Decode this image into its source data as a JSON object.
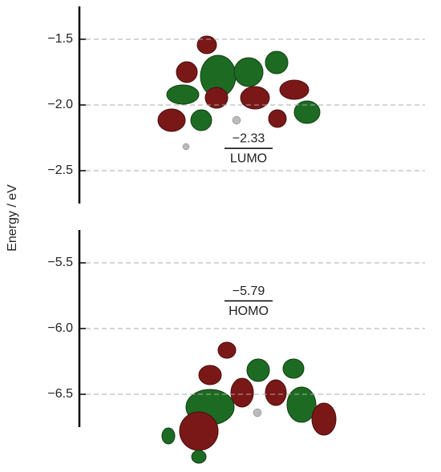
{
  "chart_data": [
    {
      "type": "level",
      "ylabel": "Energy / eV",
      "ylim": [
        -2.75,
        -1.25
      ],
      "yticks": [
        {
          "value": -1.5,
          "label": "−1.5"
        },
        {
          "value": -2.0,
          "label": "−2.0"
        },
        {
          "value": -2.5,
          "label": "−2.5"
        }
      ],
      "grid": true,
      "color": "#000000",
      "categories": [
        "LUMO"
      ],
      "values": [
        -2.33
      ],
      "value_labels": [
        "−2.33"
      ]
    },
    {
      "type": "level",
      "ylim": [
        -6.75,
        -5.25
      ],
      "yticks": [
        {
          "value": -5.5,
          "label": "−5.5"
        },
        {
          "value": -6.0,
          "label": "−6.0"
        },
        {
          "value": -6.5,
          "label": "−6.5"
        }
      ],
      "grid": true,
      "color": "#000000",
      "categories": [
        "HOMO"
      ],
      "values": [
        -5.79
      ],
      "value_labels": [
        "−5.79"
      ]
    }
  ]
}
